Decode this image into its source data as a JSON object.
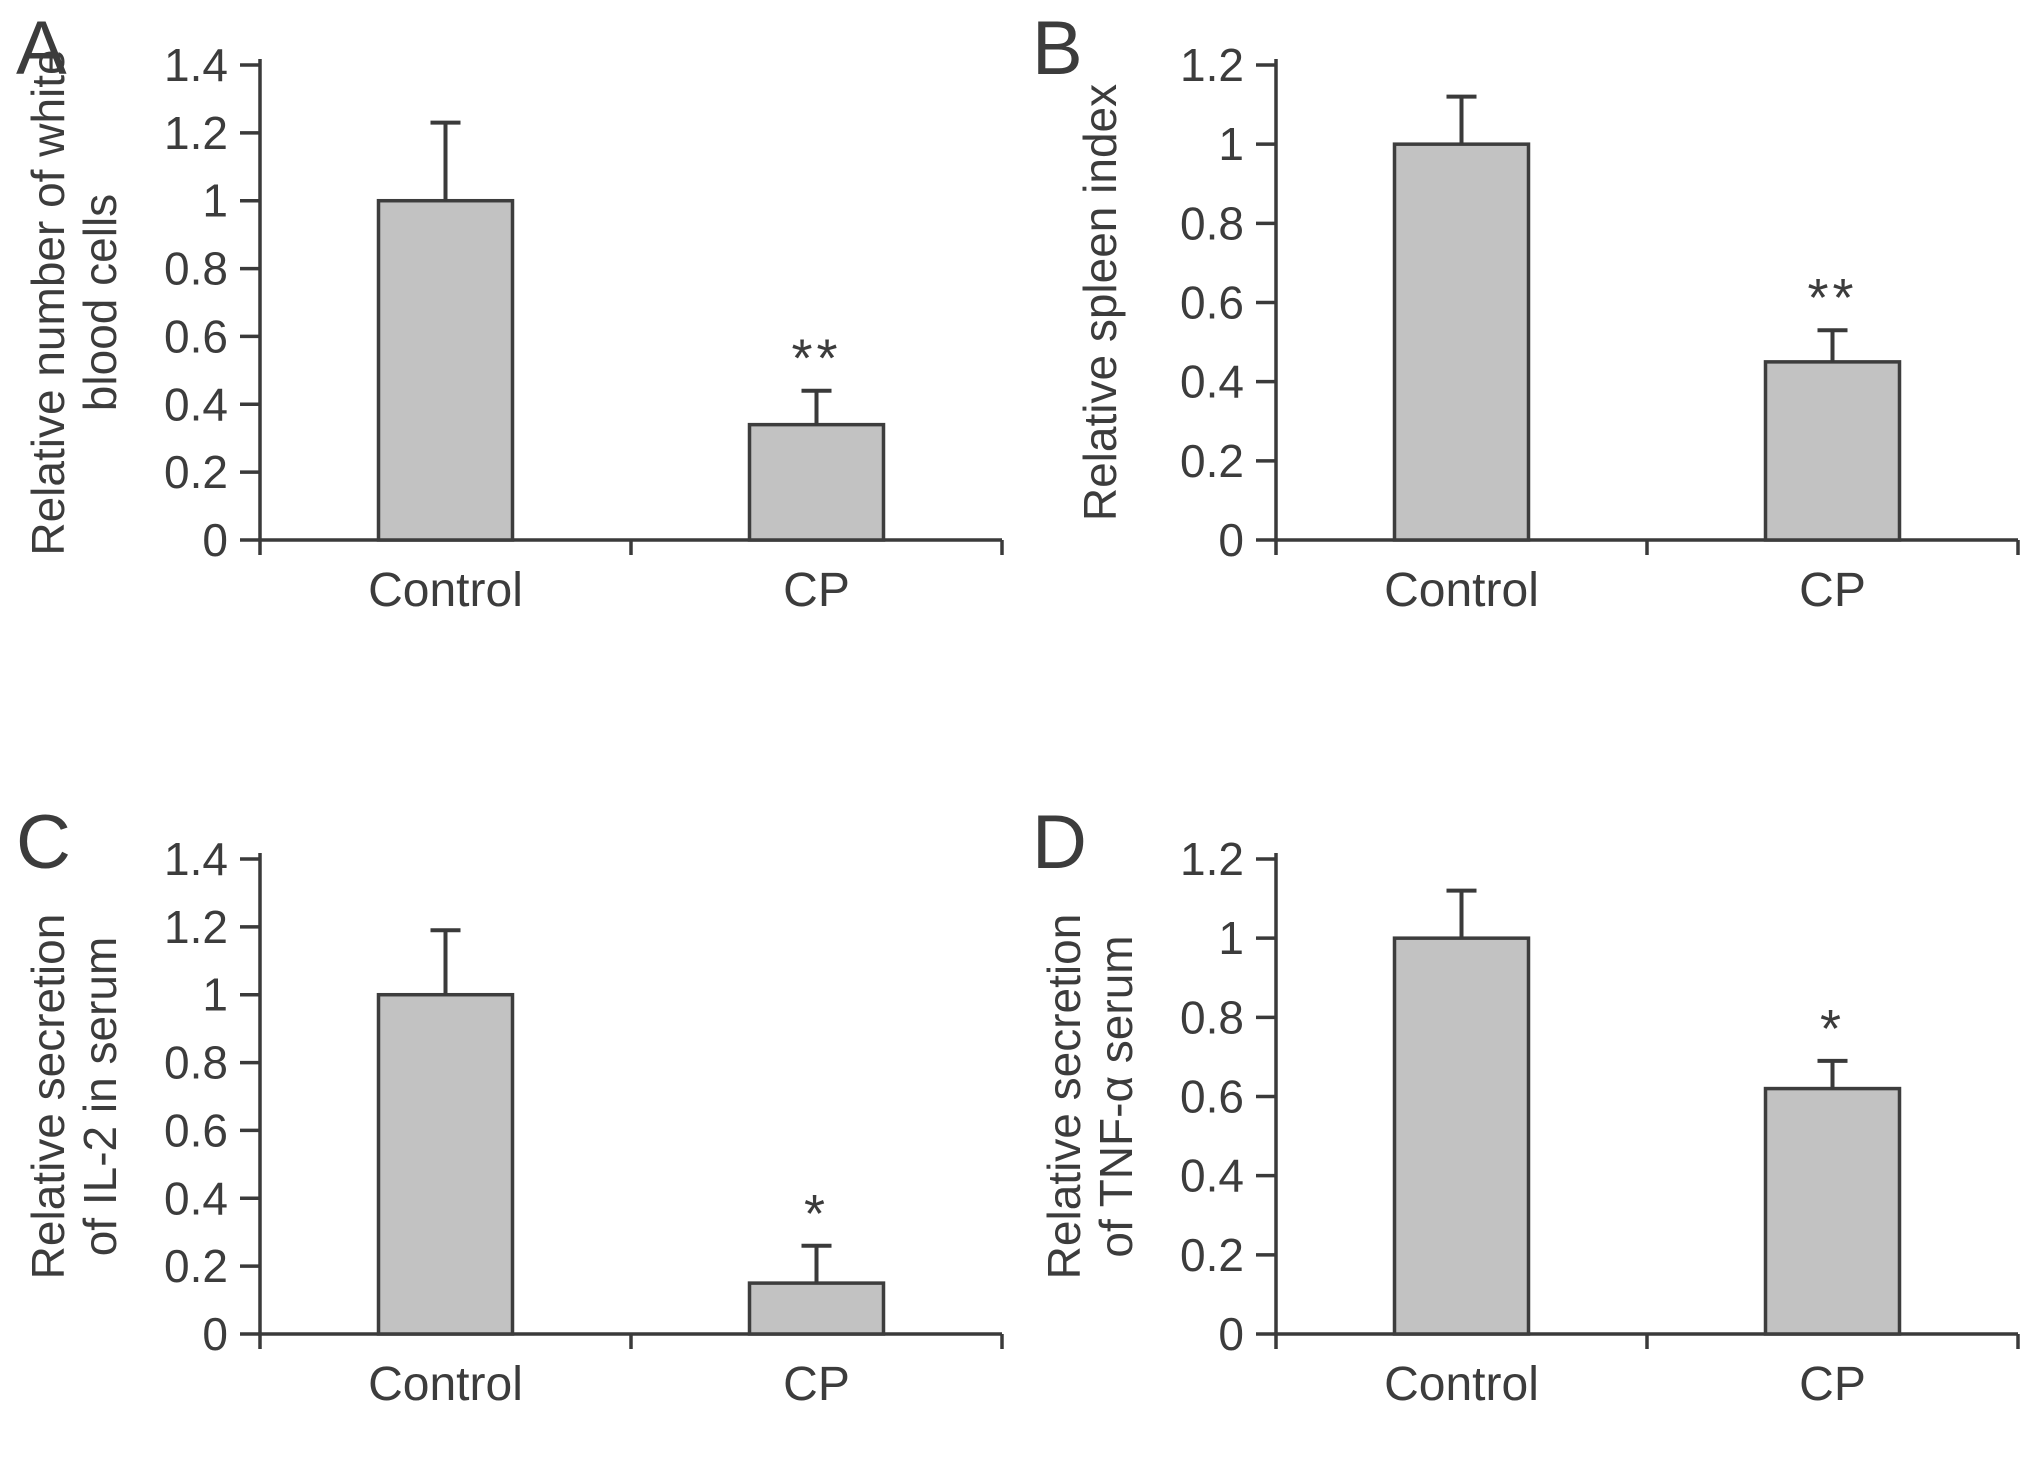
{
  "figure": {
    "background": "#ffffff",
    "bar_fill": "#c2c2c2",
    "bar_stroke": "#3d3d3d",
    "axis_color": "#3a3a3a",
    "text_color": "#3c3c3c"
  },
  "chart_data": [
    {
      "panel_label": "A",
      "type": "bar",
      "title": "",
      "xlabel": "",
      "ylabel": "Relative number of white blood cells",
      "ylabel_lines": [
        "Relative number of white",
        "blood cells"
      ],
      "categories": [
        "Control",
        "CP"
      ],
      "values": [
        1.0,
        0.34
      ],
      "errors_plus": [
        0.23,
        0.1
      ],
      "significance": [
        "",
        "**"
      ],
      "ylim": [
        0,
        1.4
      ],
      "yticks": [
        0,
        0.2,
        0.4,
        0.6,
        0.8,
        1,
        1.2,
        1.4
      ],
      "ytick_labels": [
        "0",
        "0.2",
        "0.4",
        "0.6",
        "0.8",
        "1",
        "1.2",
        "1.4"
      ],
      "grid": false,
      "legend": "none"
    },
    {
      "panel_label": "B",
      "type": "bar",
      "title": "",
      "xlabel": "",
      "ylabel": "Relative spleen index",
      "ylabel_lines": [
        "Relative spleen index"
      ],
      "categories": [
        "Control",
        "CP"
      ],
      "values": [
        1.0,
        0.45
      ],
      "errors_plus": [
        0.12,
        0.08
      ],
      "significance": [
        "",
        "**"
      ],
      "ylim": [
        0,
        1.2
      ],
      "yticks": [
        0,
        0.2,
        0.4,
        0.6,
        0.8,
        1,
        1.2
      ],
      "ytick_labels": [
        "0",
        "0.2",
        "0.4",
        "0.6",
        "0.8",
        "1",
        "1.2"
      ],
      "grid": false,
      "legend": "none"
    },
    {
      "panel_label": "C",
      "type": "bar",
      "title": "",
      "xlabel": "",
      "ylabel": "Relative secretion of IL-2 in serum",
      "ylabel_lines": [
        "Relative secretion",
        "of IL-2 in serum"
      ],
      "categories": [
        "Control",
        "CP"
      ],
      "values": [
        1.0,
        0.15
      ],
      "errors_plus": [
        0.19,
        0.11
      ],
      "significance": [
        "",
        "*"
      ],
      "ylim": [
        0,
        1.4
      ],
      "yticks": [
        0,
        0.2,
        0.4,
        0.6,
        0.8,
        1,
        1.2,
        1.4
      ],
      "ytick_labels": [
        "0",
        "0.2",
        "0.4",
        "0.6",
        "0.8",
        "1",
        "1.2",
        "1.4"
      ],
      "grid": false,
      "legend": "none"
    },
    {
      "panel_label": "D",
      "type": "bar",
      "title": "",
      "xlabel": "",
      "ylabel": "Relative secretion of TNF-α serum",
      "ylabel_lines": [
        "Relative secretion",
        "of TNF-α serum"
      ],
      "categories": [
        "Control",
        "CP"
      ],
      "values": [
        1.0,
        0.62
      ],
      "errors_plus": [
        0.12,
        0.07
      ],
      "significance": [
        "",
        "*"
      ],
      "ylim": [
        0,
        1.2
      ],
      "yticks": [
        0,
        0.2,
        0.4,
        0.6,
        0.8,
        1,
        1.2
      ],
      "ytick_labels": [
        "0",
        "0.2",
        "0.4",
        "0.6",
        "0.8",
        "1",
        "1.2"
      ],
      "grid": false,
      "legend": "none"
    }
  ]
}
